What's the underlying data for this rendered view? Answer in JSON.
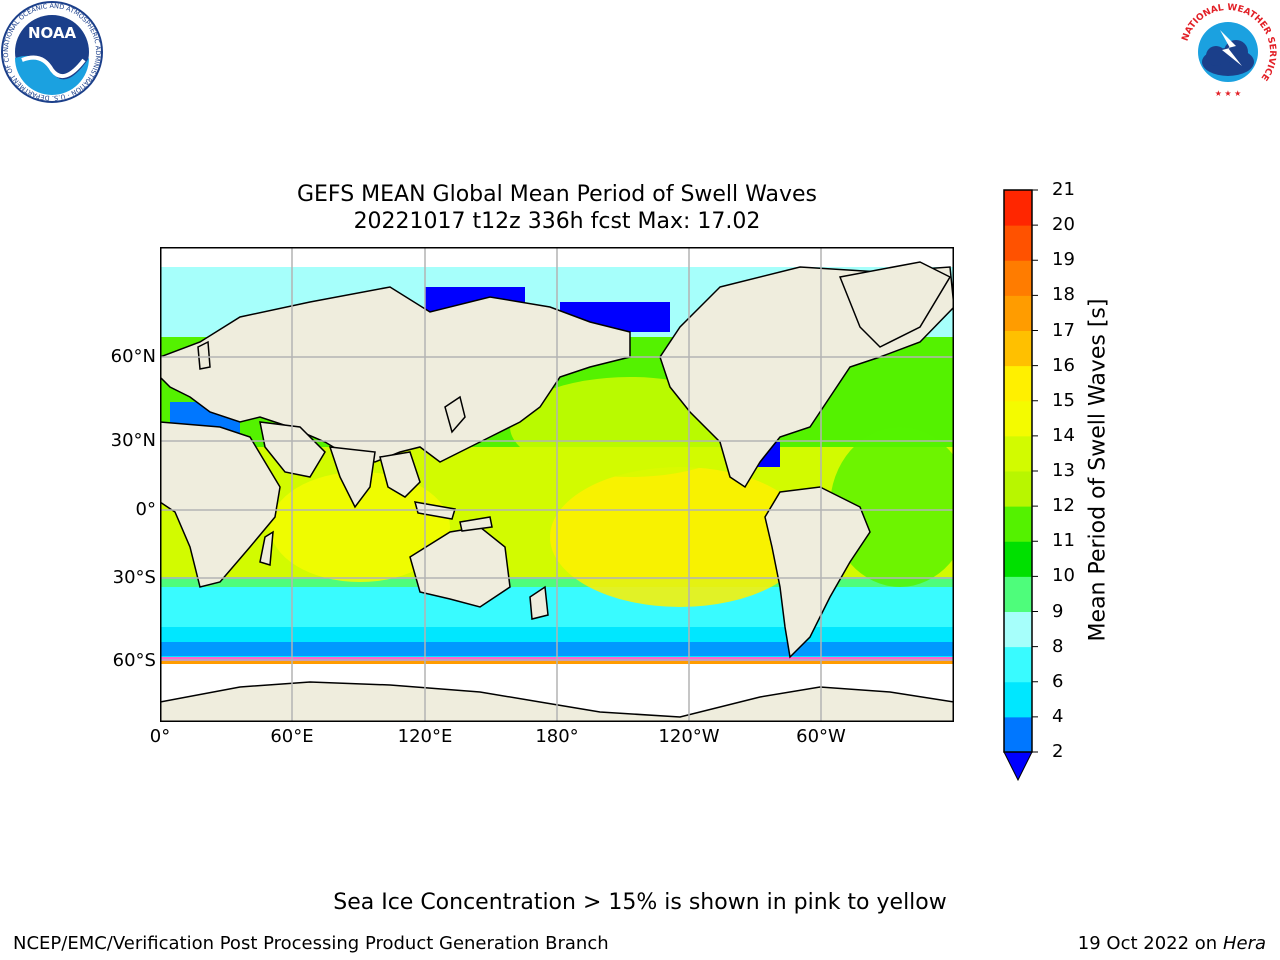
{
  "title": {
    "line1": "GEFS MEAN Global Mean Period of Swell Waves",
    "line2": "20221017 t12z 336h fcst   Max: 17.02"
  },
  "map": {
    "lat_labels": [
      "60°N",
      "30°N",
      "0°",
      "30°S",
      "60°S"
    ],
    "lon_labels": [
      "0°",
      "60°E",
      "120°E",
      "180°",
      "120°W",
      "60°W"
    ],
    "land_color": "#efeddd",
    "grid_color": "#b3b3b3"
  },
  "colorbar": {
    "title": "Mean Period of Swell Waves [s]",
    "ticks": [
      "2",
      "4",
      "6",
      "8",
      "9",
      "10",
      "11",
      "12",
      "13",
      "14",
      "15",
      "16",
      "17",
      "18",
      "19",
      "20",
      "21"
    ],
    "colors": [
      "#0077ff",
      "#00e7ff",
      "#39fbff",
      "#a6fffb",
      "#4efd7b",
      "#00e000",
      "#54f200",
      "#b8f600",
      "#d2fb00",
      "#f4fb00",
      "#fff000",
      "#ffc000",
      "#ff9c00",
      "#ff7c00",
      "#ff5200",
      "#ff2600"
    ],
    "under_color": "#0000ff"
  },
  "footer": {
    "note": "Sea Ice Concentration > 15% is shown in pink to yellow",
    "left": "NCEP/EMC/Verification Post Processing Product Generation Branch",
    "right_prefix": "19 Oct 2022 on ",
    "right_host": "Hera"
  },
  "logos": {
    "noaa_text": "NOAA",
    "noaa_ring": "NATIONAL OCEANIC AND ATMOSPHERIC ADMINISTRATION · U.S. DEPARTMENT OF COMMERCE",
    "nws_ring": "NATIONAL WEATHER SERVICE"
  }
}
